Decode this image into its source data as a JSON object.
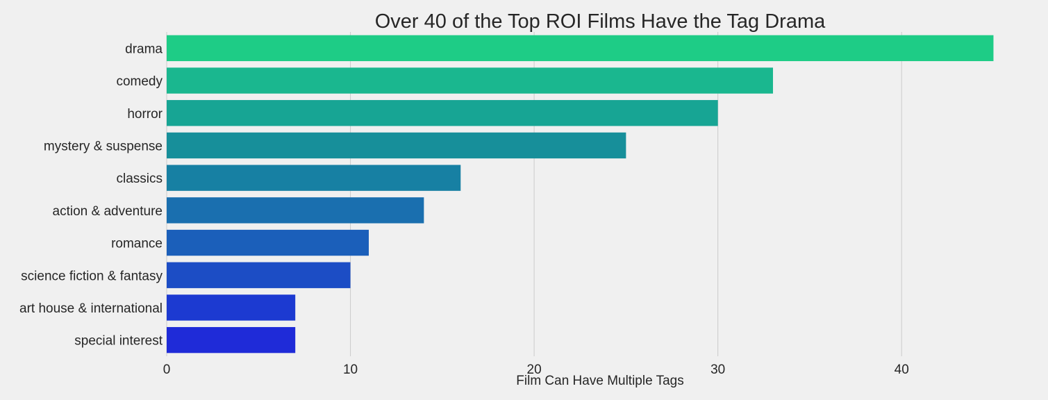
{
  "chart_data": {
    "type": "bar",
    "orientation": "horizontal",
    "title": "Over 40 of the Top ROI Films Have the Tag Drama",
    "xlabel": "Film Can Have Multiple Tags",
    "ylabel": "",
    "categories": [
      "drama",
      "comedy",
      "horror",
      "mystery & suspense",
      "classics",
      "action & adventure",
      "romance",
      "science fiction & fantasy",
      "art house & international",
      "special interest"
    ],
    "values": [
      45,
      33,
      30,
      25,
      16,
      14,
      11,
      10,
      7,
      7
    ],
    "colors": [
      "#1ecc86",
      "#1ab78f",
      "#17a594",
      "#178f9a",
      "#1780a3",
      "#1a6faf",
      "#1b5fba",
      "#1c4dc5",
      "#1c3ad1",
      "#1f2bd8"
    ],
    "xticks": [
      0,
      10,
      20,
      30,
      40
    ],
    "xlim": [
      0,
      47.25
    ],
    "grid": "vertical",
    "legend": "none"
  }
}
